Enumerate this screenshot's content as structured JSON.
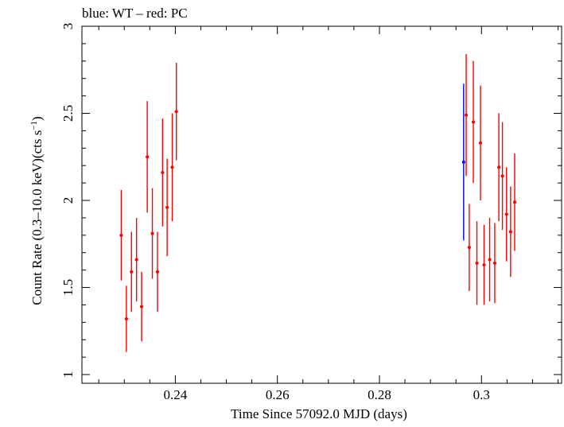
{
  "chart_data": {
    "type": "scatter",
    "title": "blue: WT – red: PC",
    "xlabel": "Time Since 57092.0 MJD (days)",
    "ylabel": "Count Rate (0.3–10.0 keV)(cts s",
    "ylabel_sup": "−1",
    "ylabel_close": ")",
    "xlim": [
      0.2217,
      0.3157
    ],
    "ylim": [
      0.95,
      3.0
    ],
    "x_ticks": [
      {
        "value": 0.24,
        "label": "0.24"
      },
      {
        "value": 0.26,
        "label": "0.26"
      },
      {
        "value": 0.28,
        "label": "0.28"
      },
      {
        "value": 0.3,
        "label": "0.30"
      }
    ],
    "x_tick_labels": [
      "0.24",
      "0.26",
      "0.28",
      "0.3"
    ],
    "y_ticks": [
      {
        "value": 1.0,
        "label": "1"
      },
      {
        "value": 1.5,
        "label": "1.5"
      },
      {
        "value": 2.0,
        "label": "2"
      },
      {
        "value": 2.5,
        "label": "2.5"
      },
      {
        "value": 3.0,
        "label": "3"
      }
    ],
    "x_minor_step": 0.005,
    "y_minor_step": 0.1,
    "series": [
      {
        "name": "WT",
        "color": "#0000ff",
        "points": [
          {
            "x": 0.2965,
            "xerr": 0.0001,
            "y": 2.22,
            "yerr": 0.45
          }
        ]
      },
      {
        "name": "PC",
        "color": "#ff0000",
        "points": [
          {
            "x": 0.2294,
            "xerr": 0.0003,
            "y": 1.8,
            "yerr": 0.26
          },
          {
            "x": 0.2304,
            "xerr": 0.0003,
            "y": 1.32,
            "yerr": 0.19
          },
          {
            "x": 0.2314,
            "xerr": 0.0003,
            "y": 1.59,
            "yerr": 0.23
          },
          {
            "x": 0.2324,
            "xerr": 0.0003,
            "y": 1.66,
            "yerr": 0.24
          },
          {
            "x": 0.2334,
            "xerr": 0.0003,
            "y": 1.39,
            "yerr": 0.2
          },
          {
            "x": 0.2345,
            "xerr": 0.0003,
            "y": 2.25,
            "yerr": 0.32
          },
          {
            "x": 0.2355,
            "xerr": 0.0003,
            "y": 1.81,
            "yerr": 0.26
          },
          {
            "x": 0.2365,
            "xerr": 0.0003,
            "y": 1.59,
            "yerr": 0.23
          },
          {
            "x": 0.2375,
            "xerr": 0.0003,
            "y": 2.16,
            "yerr": 0.31
          },
          {
            "x": 0.2384,
            "xerr": 0.0003,
            "y": 1.96,
            "yerr": 0.28
          },
          {
            "x": 0.2394,
            "xerr": 0.0003,
            "y": 2.19,
            "yerr": 0.31
          },
          {
            "x": 0.2402,
            "xerr": 0.0003,
            "y": 2.51,
            "yerr": 0.28
          },
          {
            "x": 0.297,
            "xerr": 0.0003,
            "y": 2.49,
            "yerr": 0.35
          },
          {
            "x": 0.2976,
            "xerr": 0.0003,
            "y": 1.73,
            "yerr": 0.25
          },
          {
            "x": 0.2984,
            "xerr": 0.0003,
            "y": 2.45,
            "yerr": 0.35
          },
          {
            "x": 0.2991,
            "xerr": 0.0003,
            "y": 1.64,
            "yerr": 0.24
          },
          {
            "x": 0.2998,
            "xerr": 0.0003,
            "y": 2.33,
            "yerr": 0.33
          },
          {
            "x": 0.3005,
            "xerr": 0.0003,
            "y": 1.63,
            "yerr": 0.23
          },
          {
            "x": 0.3016,
            "xerr": 0.0003,
            "y": 1.66,
            "yerr": 0.24
          },
          {
            "x": 0.3026,
            "xerr": 0.0003,
            "y": 1.64,
            "yerr": 0.23
          },
          {
            "x": 0.3034,
            "xerr": 0.0003,
            "y": 2.19,
            "yerr": 0.31
          },
          {
            "x": 0.3041,
            "xerr": 0.0003,
            "y": 2.14,
            "yerr": 0.31
          },
          {
            "x": 0.3049,
            "xerr": 0.0003,
            "y": 1.92,
            "yerr": 0.27
          },
          {
            "x": 0.3057,
            "xerr": 0.0003,
            "y": 1.82,
            "yerr": 0.26
          },
          {
            "x": 0.3065,
            "xerr": 0.0003,
            "y": 1.99,
            "yerr": 0.28
          }
        ]
      }
    ],
    "grid": false,
    "legend": "none"
  }
}
